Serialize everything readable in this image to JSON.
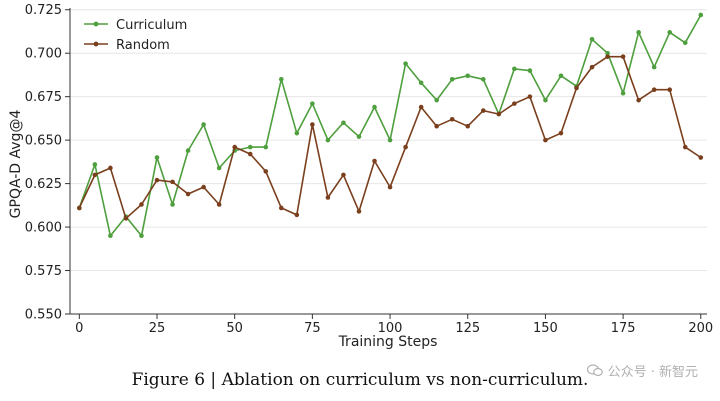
{
  "chart_data": {
    "type": "line",
    "xlabel": "Training Steps",
    "ylabel": "GPQA-D Avg@4",
    "xlim": [
      -3,
      202
    ],
    "ylim": [
      0.55,
      0.726
    ],
    "xticks": [
      0,
      25,
      50,
      75,
      100,
      125,
      150,
      175,
      200
    ],
    "yticks": [
      0.55,
      0.575,
      0.6,
      0.625,
      0.65,
      0.675,
      0.7,
      0.725
    ],
    "grid": "horizontal",
    "legend_position": "top-left",
    "x": [
      0,
      5,
      10,
      15,
      20,
      25,
      30,
      35,
      40,
      45,
      50,
      55,
      60,
      65,
      70,
      75,
      80,
      85,
      90,
      95,
      100,
      105,
      110,
      115,
      120,
      125,
      130,
      135,
      140,
      145,
      150,
      155,
      160,
      165,
      170,
      175,
      180,
      185,
      190,
      195,
      200
    ],
    "series": [
      {
        "name": "Curriculum",
        "color": "#4e9f3d",
        "values": [
          0.611,
          0.636,
          0.595,
          0.606,
          0.595,
          0.64,
          0.613,
          0.644,
          0.659,
          0.634,
          0.644,
          0.646,
          0.646,
          0.685,
          0.654,
          0.671,
          0.65,
          0.66,
          0.652,
          0.669,
          0.65,
          0.694,
          0.683,
          0.673,
          0.685,
          0.687,
          0.685,
          0.665,
          0.691,
          0.69,
          0.673,
          0.687,
          0.681,
          0.708,
          0.7,
          0.677,
          0.712,
          0.692,
          0.712,
          0.706,
          0.722
        ]
      },
      {
        "name": "Random",
        "color": "#7a3f1d",
        "values": [
          0.611,
          0.63,
          0.634,
          0.605,
          0.613,
          0.627,
          0.626,
          0.619,
          0.623,
          0.613,
          0.646,
          0.642,
          0.632,
          0.611,
          0.607,
          0.659,
          0.617,
          0.63,
          0.609,
          0.638,
          0.623,
          0.646,
          0.669,
          0.658,
          0.662,
          0.658,
          0.667,
          0.665,
          0.671,
          0.675,
          0.65,
          0.654,
          0.68,
          0.692,
          0.698,
          0.698,
          0.673,
          0.679,
          0.679,
          0.646,
          0.64
        ]
      }
    ]
  },
  "tick_format_digits": 3,
  "caption": "Figure 6 | Ablation on curriculum vs non-curriculum.",
  "watermark": "公众号 · 新智元"
}
